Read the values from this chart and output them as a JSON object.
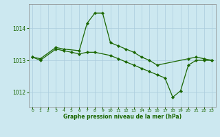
{
  "xlabel": "Graphe pression niveau de la mer (hPa)",
  "background_color": "#cce8f0",
  "grid_color": "#aaccdd",
  "line_color": "#1a6600",
  "xlim": [
    -0.5,
    23.5
  ],
  "ylim": [
    1011.55,
    1014.75
  ],
  "yticks": [
    1012,
    1013,
    1014
  ],
  "xticks": [
    0,
    1,
    2,
    3,
    4,
    5,
    6,
    7,
    8,
    9,
    10,
    11,
    12,
    13,
    14,
    15,
    16,
    17,
    18,
    19,
    20,
    21,
    22,
    23
  ],
  "series1_x": [
    0,
    1,
    3,
    4,
    6,
    7,
    8,
    9,
    10,
    11,
    12,
    13,
    14,
    15,
    16,
    20,
    21,
    22,
    23
  ],
  "series1_y": [
    1013.1,
    1013.05,
    1013.4,
    1013.35,
    1013.3,
    1014.15,
    1014.47,
    1014.47,
    1013.55,
    1013.45,
    1013.35,
    1013.25,
    1013.1,
    1013.0,
    1012.85,
    1013.05,
    1013.1,
    1013.05,
    1013.0
  ],
  "series2_x": [
    0,
    1,
    3,
    4,
    5,
    6,
    7,
    8,
    10,
    11,
    12,
    13,
    14,
    15,
    16,
    17,
    18,
    19,
    20,
    21,
    22,
    23
  ],
  "series2_y": [
    1013.1,
    1013.0,
    1013.35,
    1013.3,
    1013.25,
    1013.2,
    1013.25,
    1013.25,
    1013.15,
    1013.05,
    1012.95,
    1012.85,
    1012.75,
    1012.65,
    1012.55,
    1012.45,
    1011.85,
    1012.05,
    1012.85,
    1013.0,
    1013.0,
    1013.0
  ]
}
